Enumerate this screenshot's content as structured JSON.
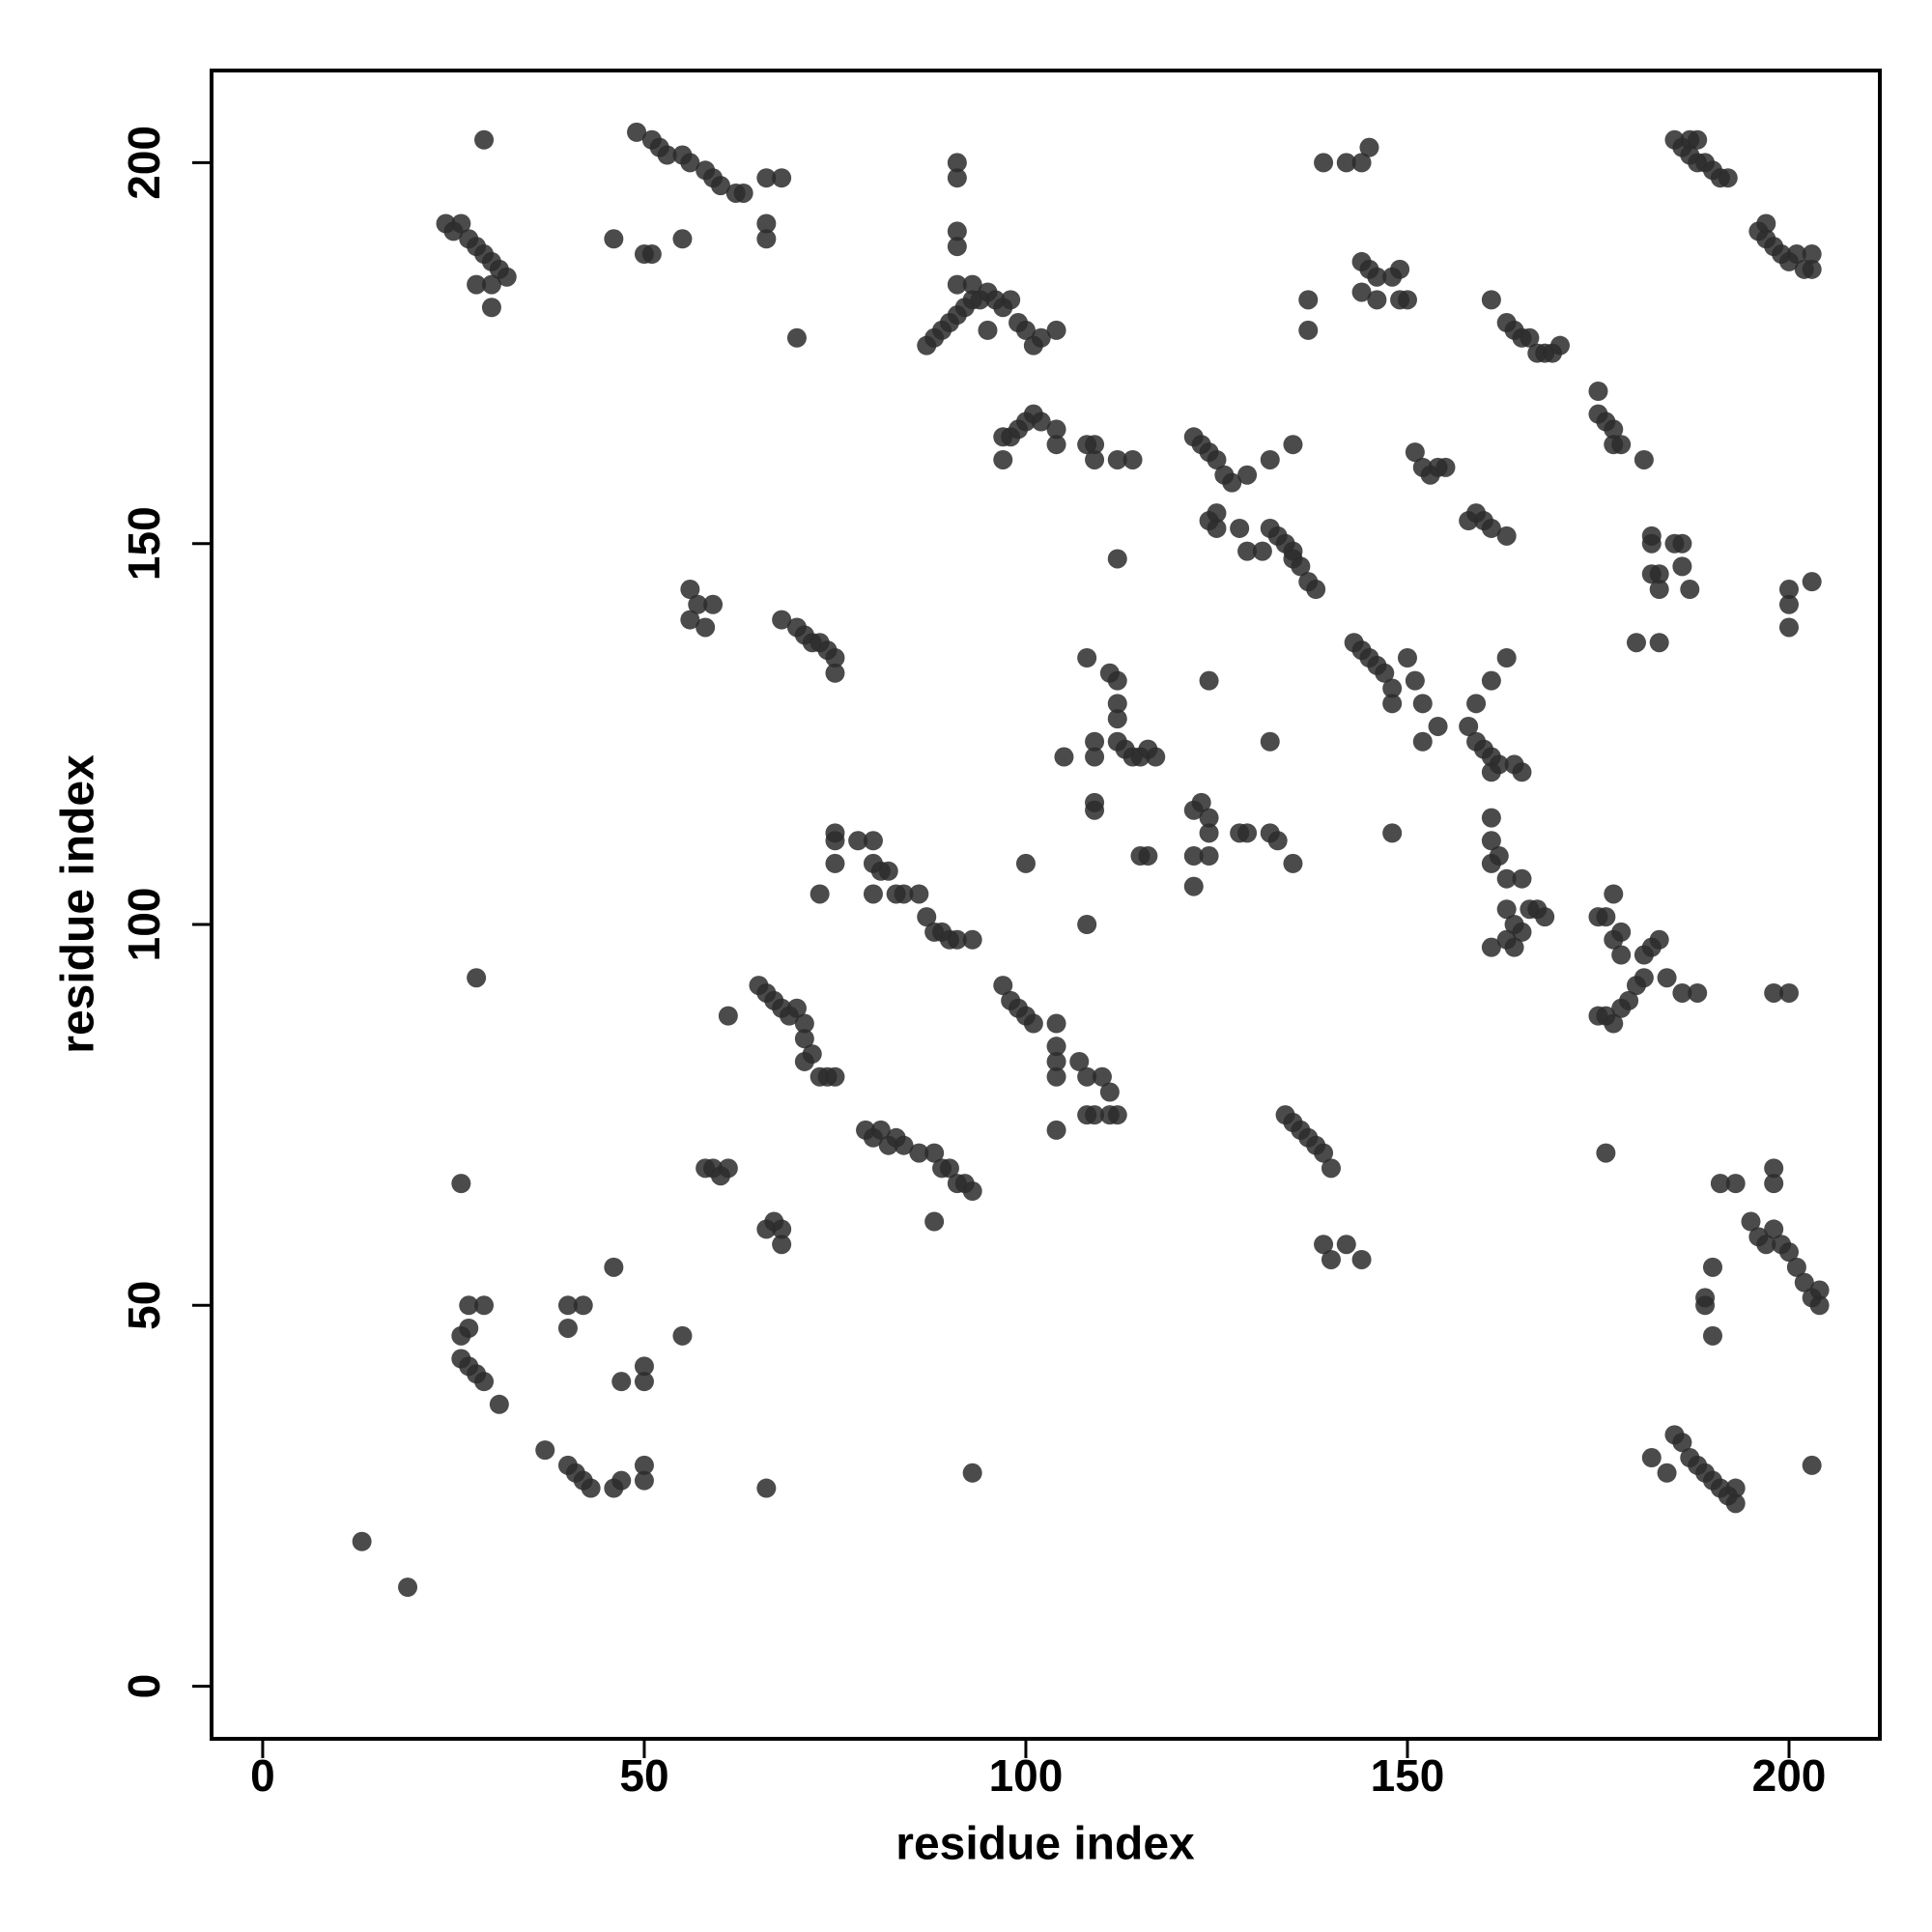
{
  "chart_data": {
    "type": "scatter",
    "x_label": "residue index",
    "y_label": "residue index",
    "color": "#2b2b2b",
    "xlim": [
      -6.7,
      211.9
    ],
    "ylim": [
      -6.9,
      212.1
    ],
    "xticks": [
      0,
      50,
      100,
      150,
      200
    ],
    "yticks": [
      0,
      50,
      100,
      150,
      200
    ],
    "x": [
      13,
      19,
      24,
      25,
      26,
      27,
      28,
      29,
      30,
      31,
      32,
      28,
      30,
      30,
      29,
      26,
      27,
      27,
      29,
      26,
      27,
      28,
      29,
      31,
      26,
      28,
      37,
      40,
      41,
      42,
      43,
      46,
      47,
      40,
      42,
      40,
      46,
      47,
      50,
      50,
      50,
      50,
      55,
      66,
      93,
      49,
      51,
      52,
      53,
      55,
      56,
      58,
      59,
      60,
      62,
      63,
      66,
      68,
      66,
      66,
      46,
      50,
      51,
      55,
      70,
      56,
      56,
      57,
      58,
      59,
      68,
      70,
      71,
      72,
      73,
      74,
      75,
      75,
      61,
      58,
      59,
      60,
      61,
      66,
      67,
      68,
      68,
      65,
      66,
      67,
      68,
      69,
      70,
      71,
      71,
      71,
      72,
      73,
      74,
      75,
      73,
      75,
      75,
      75,
      78,
      80,
      80,
      81,
      80,
      82,
      83,
      84,
      86,
      87,
      88,
      89,
      90,
      91,
      93,
      79,
      80,
      81,
      82,
      83,
      84,
      86,
      88,
      89,
      90,
      91,
      92,
      88,
      93,
      87,
      88,
      89,
      90,
      91,
      92,
      93,
      94,
      95,
      96,
      97,
      98,
      99,
      100,
      101,
      102,
      104,
      91,
      93,
      91,
      91,
      91,
      91,
      95,
      97,
      98,
      99,
      100,
      101,
      102,
      104,
      104,
      108,
      109,
      109,
      112,
      114,
      97,
      97,
      98,
      99,
      100,
      101,
      104,
      104,
      104,
      104,
      107,
      108,
      108,
      109,
      110,
      111,
      111,
      112,
      104,
      100,
      108,
      108,
      109,
      109,
      111,
      112,
      112,
      112,
      112,
      113,
      114,
      115,
      116,
      117,
      105,
      109,
      109,
      115,
      116,
      112,
      122,
      123,
      124,
      125,
      126,
      127,
      124,
      125,
      128,
      129,
      132,
      135,
      125,
      122,
      122,
      122,
      123,
      124,
      124,
      124,
      128,
      129,
      132,
      133,
      135,
      124,
      132,
      129,
      131,
      132,
      133,
      134,
      135,
      136,
      137,
      138,
      135,
      134,
      135,
      136,
      137,
      138,
      139,
      140,
      139,
      140,
      142,
      144,
      137,
      137,
      139,
      142,
      144,
      145,
      143,
      144,
      145,
      146,
      147,
      148,
      148,
      150,
      151,
      152,
      152,
      154,
      148,
      144,
      145,
      146,
      148,
      149,
      150,
      149,
      144,
      146,
      151,
      152,
      153,
      154,
      155,
      158,
      159,
      160,
      161,
      161,
      162,
      163,
      164,
      165,
      159,
      161,
      158,
      159,
      160,
      161,
      163,
      161,
      161,
      161,
      161,
      161,
      162,
      163,
      163,
      164,
      163,
      164,
      165,
      166,
      167,
      168,
      165,
      163,
      164,
      165,
      166,
      167,
      168,
      169,
      170,
      175,
      176,
      177,
      177,
      178,
      175,
      181,
      175,
      176,
      177,
      178,
      179,
      180,
      181,
      182,
      183,
      181,
      184,
      175,
      176,
      177,
      177,
      178,
      178,
      186,
      188,
      176,
      182,
      182,
      182,
      183,
      185,
      186,
      186,
      187,
      183,
      180,
      183,
      185,
      186,
      187,
      188,
      189,
      190,
      191,
      192,
      187,
      188,
      182,
      184,
      185,
      186,
      187,
      188,
      189,
      190,
      191,
      192,
      193,
      193,
      189,
      189,
      190,
      190,
      191,
      193,
      196,
      197,
      198,
      199,
      200,
      201,
      202,
      203,
      203,
      197,
      195,
      196,
      197,
      198,
      199,
      200,
      201,
      202,
      203,
      204,
      204,
      198,
      198,
      198,
      200,
      200,
      200,
      200,
      203,
      203
    ],
    "y": [
      19,
      13,
      192,
      191,
      192,
      190,
      189,
      188,
      187,
      186,
      185,
      184,
      184,
      181,
      203,
      46,
      47,
      50,
      50,
      43,
      42,
      41,
      40,
      37,
      66,
      93,
      31,
      29,
      28,
      27,
      26,
      26,
      27,
      50,
      50,
      47,
      55,
      40,
      40,
      42,
      29,
      27,
      46,
      26,
      28,
      204,
      203,
      202,
      201,
      201,
      200,
      199,
      198,
      197,
      196,
      196,
      198,
      198,
      190,
      192,
      190,
      188,
      188,
      190,
      177,
      144,
      140,
      142,
      139,
      142,
      140,
      139,
      138,
      137,
      137,
      136,
      135,
      133,
      88,
      68,
      68,
      67,
      68,
      60,
      61,
      60,
      58,
      92,
      91,
      90,
      89,
      88,
      89,
      87,
      85,
      82,
      83,
      80,
      80,
      80,
      104,
      108,
      111,
      112,
      111,
      111,
      108,
      107,
      104,
      107,
      104,
      104,
      104,
      101,
      99,
      99,
      98,
      98,
      98,
      73,
      72,
      73,
      71,
      72,
      71,
      70,
      70,
      68,
      68,
      66,
      66,
      61,
      65,
      176,
      177,
      178,
      179,
      180,
      181,
      182,
      182,
      183,
      182,
      181,
      182,
      179,
      178,
      176,
      177,
      178,
      184,
      184,
      198,
      200,
      191,
      189,
      178,
      164,
      164,
      165,
      166,
      167,
      166,
      163,
      165,
      163,
      161,
      163,
      161,
      161,
      161,
      92,
      90,
      89,
      88,
      87,
      87,
      84,
      82,
      80,
      82,
      80,
      75,
      75,
      80,
      78,
      75,
      75,
      73,
      108,
      100,
      135,
      122,
      124,
      133,
      132,
      129,
      127,
      124,
      123,
      122,
      122,
      123,
      122,
      122,
      116,
      115,
      109,
      109,
      148,
      164,
      163,
      162,
      161,
      159,
      158,
      153,
      154,
      152,
      159,
      161,
      163,
      152,
      105,
      109,
      115,
      116,
      114,
      112,
      109,
      112,
      112,
      112,
      111,
      108,
      132,
      124,
      149,
      149,
      152,
      151,
      150,
      149,
      147,
      145,
      144,
      148,
      75,
      74,
      73,
      72,
      71,
      70,
      68,
      58,
      56,
      58,
      56,
      182,
      178,
      200,
      200,
      200,
      202,
      137,
      136,
      135,
      134,
      133,
      131,
      129,
      135,
      132,
      129,
      124,
      126,
      112,
      187,
      186,
      185,
      185,
      182,
      182,
      186,
      183,
      182,
      162,
      160,
      159,
      160,
      160,
      126,
      124,
      123,
      122,
      120,
      121,
      135,
      121,
      120,
      129,
      132,
      153,
      154,
      153,
      152,
      151,
      182,
      97,
      108,
      111,
      114,
      109,
      106,
      102,
      100,
      98,
      97,
      99,
      102,
      102,
      101,
      106,
      179,
      178,
      177,
      177,
      175,
      175,
      175,
      176,
      167,
      166,
      165,
      163,
      163,
      170,
      161,
      88,
      88,
      87,
      89,
      90,
      92,
      96,
      97,
      98,
      93,
      93,
      101,
      101,
      104,
      98,
      96,
      99,
      91,
      91,
      70,
      151,
      150,
      146,
      146,
      150,
      150,
      147,
      144,
      144,
      137,
      137,
      203,
      202,
      201,
      200,
      200,
      199,
      198,
      198,
      203,
      203,
      30,
      28,
      33,
      32,
      30,
      29,
      28,
      27,
      26,
      25,
      24,
      26,
      50,
      51,
      46,
      55,
      66,
      66,
      191,
      190,
      189,
      188,
      187,
      188,
      186,
      186,
      188,
      192,
      61,
      59,
      58,
      60,
      58,
      57,
      55,
      53,
      51,
      50,
      52,
      66,
      68,
      91,
      91,
      144,
      142,
      139,
      145,
      29
    ]
  }
}
